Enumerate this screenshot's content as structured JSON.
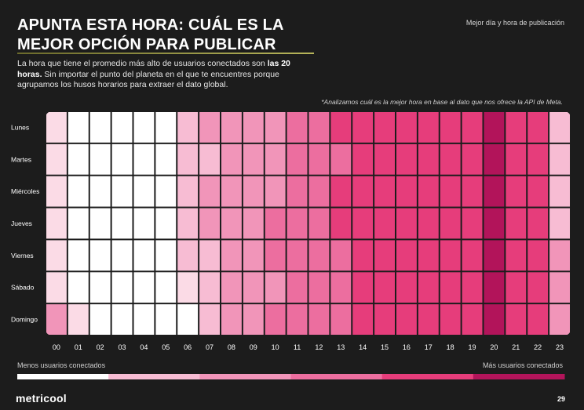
{
  "header": {
    "title_line1": "APUNTA ESTA HORA: CUÁL ES LA",
    "title_line2": "MEJOR OPCIÓN PARA PUBLICAR",
    "section_tag": "Mejor día y hora de publicación"
  },
  "intro": {
    "text_before": "La hora que tiene el promedio más alto de usuarios conectados son ",
    "highlight": "las 20 horas.",
    "text_after": " Sin importar el punto del planeta en el que te encuentres porque agrupamos los husos horarios para extraer el dato global."
  },
  "note": "*Analizamos cuál es la mejor hora en base al dato que nos ofrece la API de Meta.",
  "chart_data": {
    "type": "heatmap",
    "title": "",
    "y_categories": [
      "Lunes",
      "Martes",
      "Miércoles",
      "Jueves",
      "Viernes",
      "Sábado",
      "Domingo"
    ],
    "x_categories": [
      "00",
      "01",
      "02",
      "03",
      "04",
      "05",
      "06",
      "07",
      "08",
      "09",
      "10",
      "11",
      "12",
      "13",
      "14",
      "15",
      "16",
      "17",
      "18",
      "19",
      "20",
      "21",
      "22",
      "23"
    ],
    "scale_levels": 7,
    "values": [
      [
        1,
        0,
        0,
        0,
        0,
        0,
        2,
        3,
        3,
        3,
        3,
        4,
        4,
        5,
        5,
        5,
        5,
        5,
        5,
        5,
        6,
        5,
        5,
        2
      ],
      [
        1,
        0,
        0,
        0,
        0,
        0,
        2,
        2,
        3,
        3,
        3,
        4,
        4,
        4,
        5,
        5,
        5,
        5,
        5,
        5,
        6,
        5,
        5,
        2
      ],
      [
        1,
        0,
        0,
        0,
        0,
        0,
        2,
        3,
        3,
        3,
        3,
        4,
        4,
        5,
        5,
        5,
        5,
        5,
        5,
        5,
        6,
        5,
        5,
        2
      ],
      [
        1,
        0,
        0,
        0,
        0,
        0,
        2,
        3,
        3,
        3,
        4,
        4,
        4,
        5,
        5,
        5,
        5,
        5,
        5,
        5,
        6,
        5,
        5,
        2
      ],
      [
        1,
        0,
        0,
        0,
        0,
        0,
        2,
        2,
        3,
        3,
        4,
        4,
        4,
        4,
        5,
        5,
        5,
        5,
        5,
        5,
        6,
        5,
        5,
        3
      ],
      [
        1,
        0,
        0,
        0,
        0,
        0,
        1,
        2,
        3,
        3,
        3,
        4,
        4,
        4,
        5,
        5,
        5,
        5,
        5,
        5,
        6,
        5,
        5,
        3
      ],
      [
        3,
        1,
        0,
        0,
        0,
        0,
        0,
        2,
        3,
        3,
        4,
        4,
        4,
        4,
        5,
        5,
        5,
        5,
        5,
        5,
        6,
        5,
        5,
        3
      ]
    ],
    "colors": [
      "#ffffff",
      "#fbdbe6",
      "#f7bcd3",
      "#f195b9",
      "#ec6e9f",
      "#e63d7b",
      "#b2145a"
    ],
    "legend": {
      "min_label": "Menos usuarios conectados",
      "max_label": "Más usuarios conectados"
    }
  },
  "footer": {
    "logo": "metricool",
    "page_number": "29"
  }
}
